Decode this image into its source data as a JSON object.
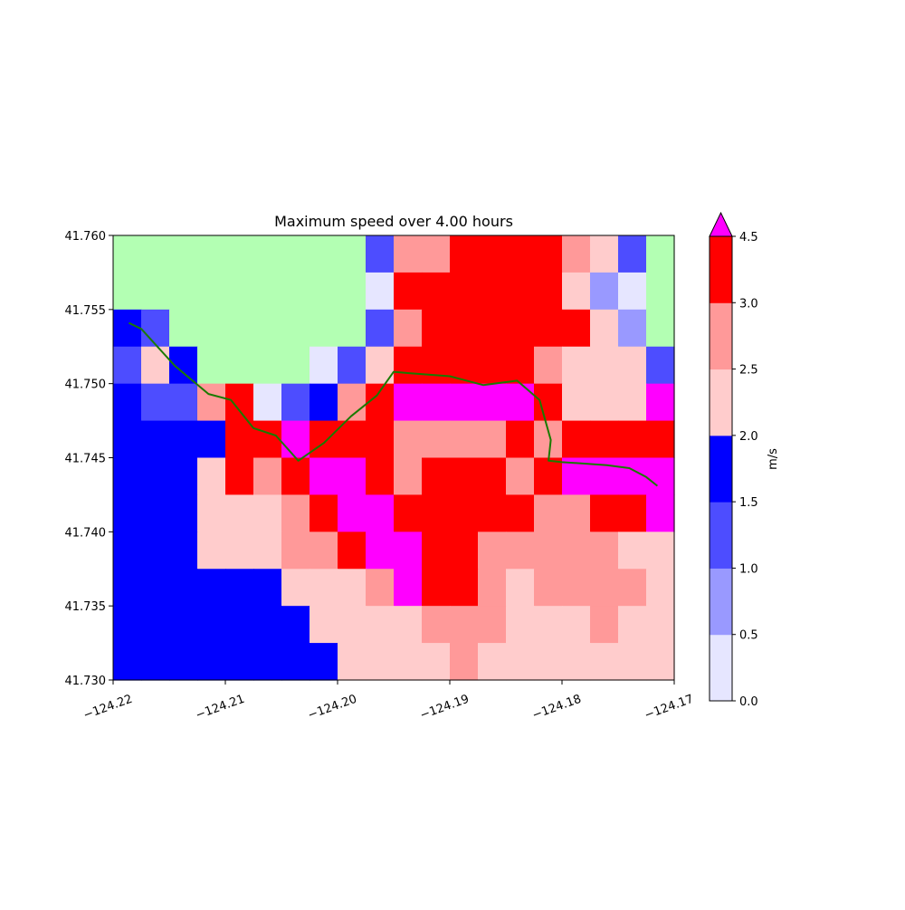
{
  "chart_data": {
    "type": "heatmap",
    "title": "Maximum speed over 4.00 hours",
    "xlabel": "",
    "ylabel": "",
    "x_range": [
      -124.22,
      -124.17
    ],
    "y_range": [
      41.73,
      41.76
    ],
    "x_ticks": [
      -124.22,
      -124.21,
      -124.2,
      -124.19,
      -124.18,
      -124.17
    ],
    "x_tick_labels": [
      "−124.22",
      "−124.21",
      "−124.20",
      "−124.19",
      "−124.18",
      "−124.17"
    ],
    "y_ticks": [
      41.76,
      41.755,
      41.75,
      41.745,
      41.74,
      41.735,
      41.73
    ],
    "y_tick_labels": [
      "41.760",
      "41.755",
      "41.750",
      "41.745",
      "41.740",
      "41.735",
      "41.730"
    ],
    "grid": {
      "ncols": 20,
      "nrows": 12,
      "row_order": "top-to-bottom",
      "codes": [
        "LLLLLLLLLE11331111216L",
        "LLLLLLLLL012222222L"
      ],
      "rows": [
        "LLLLLLLLLE11111324EL",
        "LLLLLLLLL0111111G52L",
        "ELLLLLLLLE211111114L",
        "FGELLLL0EG111113GG3F",
        "ECCF1G0E31PPPPP1GGGP",
        "EEEE11PF11222213311",
        "EEGG13GG1PG2111231PP",
        "EEGGG21PP111111G22P",
        "EEGGG222P1111222222GG",
        "EEEEEGGG2P1122222G",
        "EEEEEEGGG2GG2GGGGGG",
        "EEEEEEEGGGG2GGGGGGG"
      ],
      "values": [
        [
          null,
          null,
          null,
          null,
          null,
          null,
          null,
          null,
          null,
          1.25,
          2.75,
          2.75,
          3.25,
          3.25,
          3.25,
          3.25,
          2.75,
          2.25,
          1.25,
          null
        ],
        [
          null,
          null,
          null,
          null,
          null,
          null,
          null,
          null,
          null,
          0.25,
          3.25,
          3.25,
          3.25,
          3.25,
          3.25,
          3.25,
          2.25,
          0.75,
          0.25,
          null
        ],
        [
          1.75,
          1.25,
          null,
          null,
          null,
          null,
          null,
          null,
          null,
          1.25,
          2.75,
          3.25,
          3.25,
          3.25,
          3.25,
          3.25,
          3.25,
          2.25,
          0.75,
          null
        ],
        [
          1.25,
          2.25,
          1.75,
          null,
          null,
          null,
          null,
          0.25,
          1.25,
          2.25,
          3.25,
          3.25,
          3.25,
          3.25,
          3.25,
          2.75,
          2.25,
          2.25,
          2.25,
          1.25
        ],
        [
          1.75,
          1.25,
          1.25,
          2.75,
          3.25,
          0.25,
          1.25,
          1.75,
          2.75,
          3.25,
          4.75,
          4.75,
          4.75,
          4.75,
          4.75,
          3.25,
          2.25,
          2.25,
          2.25,
          4.75
        ],
        [
          1.75,
          1.75,
          1.75,
          1.75,
          3.25,
          3.25,
          4.75,
          3.25,
          3.25,
          3.25,
          2.75,
          2.75,
          2.75,
          2.75,
          3.25,
          2.75,
          3.25,
          3.25,
          3.25,
          3.25
        ],
        [
          1.75,
          1.75,
          1.75,
          2.25,
          3.25,
          2.75,
          3.25,
          4.75,
          4.75,
          3.25,
          2.75,
          3.25,
          3.25,
          3.25,
          2.75,
          3.25,
          4.75,
          4.75,
          4.75,
          4.75
        ],
        [
          1.75,
          1.75,
          1.75,
          2.25,
          2.25,
          2.25,
          2.75,
          3.25,
          4.75,
          4.75,
          3.25,
          3.25,
          3.25,
          3.25,
          3.25,
          2.75,
          2.75,
          3.25,
          3.25,
          4.75
        ],
        [
          1.75,
          1.75,
          1.75,
          2.25,
          2.25,
          2.25,
          2.75,
          2.75,
          3.25,
          4.75,
          4.75,
          3.25,
          3.25,
          2.75,
          2.75,
          2.75,
          2.75,
          2.75,
          2.25,
          2.25
        ],
        [
          1.75,
          1.75,
          1.75,
          1.75,
          1.75,
          1.75,
          2.25,
          2.25,
          2.25,
          2.75,
          4.75,
          3.25,
          3.25,
          2.75,
          2.25,
          2.75,
          2.75,
          2.75,
          2.75,
          2.25
        ],
        [
          1.75,
          1.75,
          1.75,
          1.75,
          1.75,
          1.75,
          1.75,
          2.25,
          2.25,
          2.25,
          2.25,
          2.75,
          2.75,
          2.75,
          2.25,
          2.25,
          2.25,
          2.75,
          2.25,
          2.25
        ],
        [
          1.75,
          1.75,
          1.75,
          1.75,
          1.75,
          1.75,
          1.75,
          1.75,
          2.25,
          2.25,
          2.25,
          2.25,
          2.75,
          2.25,
          2.25,
          2.25,
          2.25,
          2.25,
          2.25,
          2.25
        ]
      ],
      "land_color": "#b3ffb3"
    },
    "track": {
      "color": "#1a7a00",
      "lon": [
        -124.2186,
        -124.2175,
        -124.2145,
        -124.2115,
        -124.2095,
        -124.2075,
        -124.2055,
        -124.2035,
        -124.2012,
        -124.1988,
        -124.1965,
        -124.195,
        -124.1935,
        -124.19,
        -124.187,
        -124.184,
        -124.182,
        -124.181,
        -124.1812,
        -124.18,
        -124.178,
        -124.176,
        -124.174,
        -124.1725,
        -124.1715
      ],
      "lat": [
        41.7541,
        41.7537,
        41.7512,
        41.7493,
        41.7489,
        41.747,
        41.7465,
        41.7448,
        41.746,
        41.7478,
        41.7492,
        41.7508,
        41.7507,
        41.7505,
        41.7499,
        41.7502,
        41.7489,
        41.7462,
        41.7448,
        41.7447,
        41.7446,
        41.7445,
        41.7443,
        41.7437,
        41.7431
      ]
    },
    "colorbar": {
      "label": "m/s",
      "extend": "max",
      "extend_color": "#ff00ff",
      "boundaries": [
        0,
        0.5,
        1.0,
        1.5,
        2.0,
        2.5,
        3.0,
        4.5
      ],
      "tick_labels": [
        "0.0",
        "0.5",
        "1.0",
        "1.5",
        "2.0",
        "2.5",
        "3.0",
        "4.5"
      ],
      "colors": [
        "#e6e6ff",
        "#9999ff",
        "#4d4dff",
        "#0000ff",
        "#ffcccc",
        "#ff9999",
        "#ff0000"
      ]
    }
  }
}
